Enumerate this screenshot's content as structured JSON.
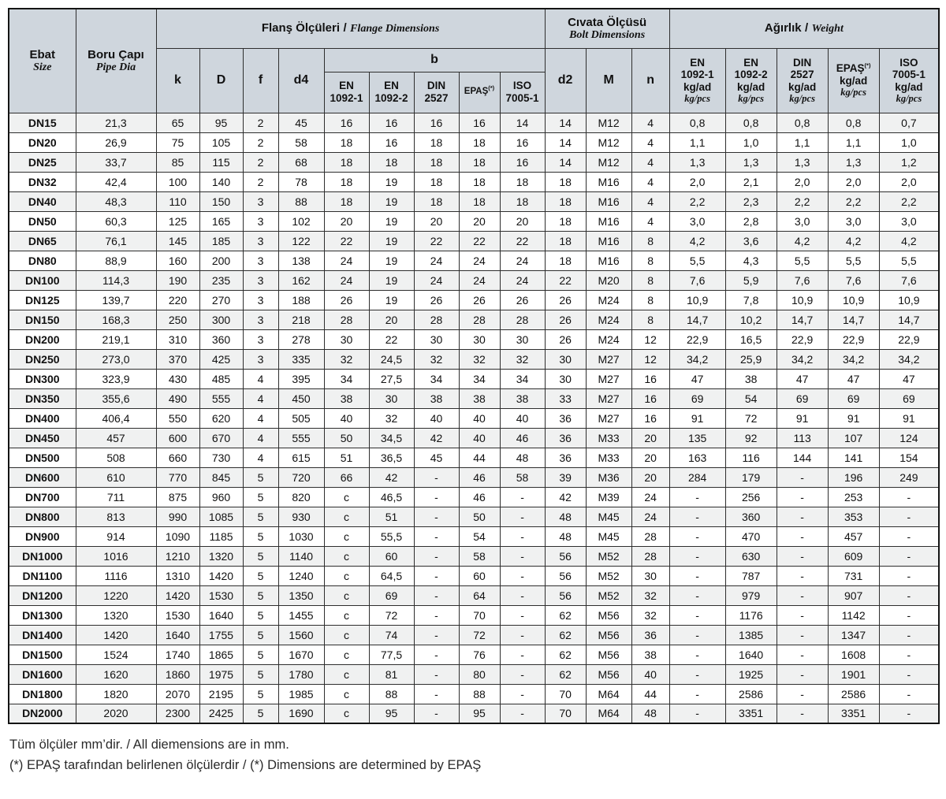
{
  "colors": {
    "header_bg": "#cfd6dd",
    "stripe": "#f0f1f1",
    "grid": "#2e2e2e"
  },
  "page": {
    "footnote1": "Tüm ölçüler mm’dir. / All diemensions are in mm.",
    "footnote2": "(*) EPAŞ tarafından belirlenen ölçülerdir / (*) Dimensions are determined by EPAŞ"
  },
  "table": {
    "header": {
      "sep": "/",
      "size": {
        "tr": "Ebat",
        "en": "Size"
      },
      "pipe": {
        "tr": "Boru Çapı",
        "en": "Pipe Dia"
      },
      "flange_group": {
        "tr": "Flanş Ölçüleri",
        "en": "Flange Dimensions"
      },
      "bolt_group": {
        "tr": "Cıvata Ölçüsü",
        "en": "Bolt Dimensions"
      },
      "weight_group": {
        "tr": "Ağırlık",
        "en": "Weight"
      },
      "k": "k",
      "D": "D",
      "f": "f",
      "d4": "d4",
      "b": "b",
      "d2": "d2",
      "M": "M",
      "n": "n",
      "unit_ad": "kg/ad",
      "unit_pcs": "kg/pcs",
      "b_sub": [
        {
          "l1": "EN",
          "l2": "1092-1"
        },
        {
          "l1": "EN",
          "l2": "1092-2"
        },
        {
          "l1": "DIN",
          "l2": "2527"
        },
        {
          "l1": "EPAŞ",
          "sup": "(*)"
        },
        {
          "l1": "ISO",
          "l2": "7005-1"
        }
      ],
      "weight_sub": [
        {
          "l1": "EN",
          "l2": "1092-1"
        },
        {
          "l1": "EN",
          "l2": "1092-2"
        },
        {
          "l1": "DIN",
          "l2": "2527"
        },
        {
          "l1": "EPAŞ",
          "sup": "(*)"
        },
        {
          "l1": "ISO",
          "l2": "7005-1"
        }
      ]
    },
    "rows": [
      [
        "DN15",
        "21,3",
        "65",
        "95",
        "2",
        "45",
        "16",
        "16",
        "16",
        "16",
        "14",
        "14",
        "M12",
        "4",
        "0,8",
        "0,8",
        "0,8",
        "0,8",
        "0,7"
      ],
      [
        "DN20",
        "26,9",
        "75",
        "105",
        "2",
        "58",
        "18",
        "16",
        "18",
        "18",
        "16",
        "14",
        "M12",
        "4",
        "1,1",
        "1,0",
        "1,1",
        "1,1",
        "1,0"
      ],
      [
        "DN25",
        "33,7",
        "85",
        "115",
        "2",
        "68",
        "18",
        "18",
        "18",
        "18",
        "16",
        "14",
        "M12",
        "4",
        "1,3",
        "1,3",
        "1,3",
        "1,3",
        "1,2"
      ],
      [
        "DN32",
        "42,4",
        "100",
        "140",
        "2",
        "78",
        "18",
        "19",
        "18",
        "18",
        "18",
        "18",
        "M16",
        "4",
        "2,0",
        "2,1",
        "2,0",
        "2,0",
        "2,0"
      ],
      [
        "DN40",
        "48,3",
        "110",
        "150",
        "3",
        "88",
        "18",
        "19",
        "18",
        "18",
        "18",
        "18",
        "M16",
        "4",
        "2,2",
        "2,3",
        "2,2",
        "2,2",
        "2,2"
      ],
      [
        "DN50",
        "60,3",
        "125",
        "165",
        "3",
        "102",
        "20",
        "19",
        "20",
        "20",
        "20",
        "18",
        "M16",
        "4",
        "3,0",
        "2,8",
        "3,0",
        "3,0",
        "3,0"
      ],
      [
        "DN65",
        "76,1",
        "145",
        "185",
        "3",
        "122",
        "22",
        "19",
        "22",
        "22",
        "22",
        "18",
        "M16",
        "8",
        "4,2",
        "3,6",
        "4,2",
        "4,2",
        "4,2"
      ],
      [
        "DN80",
        "88,9",
        "160",
        "200",
        "3",
        "138",
        "24",
        "19",
        "24",
        "24",
        "24",
        "18",
        "M16",
        "8",
        "5,5",
        "4,3",
        "5,5",
        "5,5",
        "5,5"
      ],
      [
        "DN100",
        "114,3",
        "190",
        "235",
        "3",
        "162",
        "24",
        "19",
        "24",
        "24",
        "24",
        "22",
        "M20",
        "8",
        "7,6",
        "5,9",
        "7,6",
        "7,6",
        "7,6"
      ],
      [
        "DN125",
        "139,7",
        "220",
        "270",
        "3",
        "188",
        "26",
        "19",
        "26",
        "26",
        "26",
        "26",
        "M24",
        "8",
        "10,9",
        "7,8",
        "10,9",
        "10,9",
        "10,9"
      ],
      [
        "DN150",
        "168,3",
        "250",
        "300",
        "3",
        "218",
        "28",
        "20",
        "28",
        "28",
        "28",
        "26",
        "M24",
        "8",
        "14,7",
        "10,2",
        "14,7",
        "14,7",
        "14,7"
      ],
      [
        "DN200",
        "219,1",
        "310",
        "360",
        "3",
        "278",
        "30",
        "22",
        "30",
        "30",
        "30",
        "26",
        "M24",
        "12",
        "22,9",
        "16,5",
        "22,9",
        "22,9",
        "22,9"
      ],
      [
        "DN250",
        "273,0",
        "370",
        "425",
        "3",
        "335",
        "32",
        "24,5",
        "32",
        "32",
        "32",
        "30",
        "M27",
        "12",
        "34,2",
        "25,9",
        "34,2",
        "34,2",
        "34,2"
      ],
      [
        "DN300",
        "323,9",
        "430",
        "485",
        "4",
        "395",
        "34",
        "27,5",
        "34",
        "34",
        "34",
        "30",
        "M27",
        "16",
        "47",
        "38",
        "47",
        "47",
        "47"
      ],
      [
        "DN350",
        "355,6",
        "490",
        "555",
        "4",
        "450",
        "38",
        "30",
        "38",
        "38",
        "38",
        "33",
        "M27",
        "16",
        "69",
        "54",
        "69",
        "69",
        "69"
      ],
      [
        "DN400",
        "406,4",
        "550",
        "620",
        "4",
        "505",
        "40",
        "32",
        "40",
        "40",
        "40",
        "36",
        "M27",
        "16",
        "91",
        "72",
        "91",
        "91",
        "91"
      ],
      [
        "DN450",
        "457",
        "600",
        "670",
        "4",
        "555",
        "50",
        "34,5",
        "42",
        "40",
        "46",
        "36",
        "M33",
        "20",
        "135",
        "92",
        "113",
        "107",
        "124"
      ],
      [
        "DN500",
        "508",
        "660",
        "730",
        "4",
        "615",
        "51",
        "36,5",
        "45",
        "44",
        "48",
        "36",
        "M33",
        "20",
        "163",
        "116",
        "144",
        "141",
        "154"
      ],
      [
        "DN600",
        "610",
        "770",
        "845",
        "5",
        "720",
        "66",
        "42",
        "-",
        "46",
        "58",
        "39",
        "M36",
        "20",
        "284",
        "179",
        "-",
        "196",
        "249"
      ],
      [
        "DN700",
        "711",
        "875",
        "960",
        "5",
        "820",
        "c",
        "46,5",
        "-",
        "46",
        "-",
        "42",
        "M39",
        "24",
        "-",
        "256",
        "-",
        "253",
        "-"
      ],
      [
        "DN800",
        "813",
        "990",
        "1085",
        "5",
        "930",
        "c",
        "51",
        "-",
        "50",
        "-",
        "48",
        "M45",
        "24",
        "-",
        "360",
        "-",
        "353",
        "-"
      ],
      [
        "DN900",
        "914",
        "1090",
        "1185",
        "5",
        "1030",
        "c",
        "55,5",
        "-",
        "54",
        "-",
        "48",
        "M45",
        "28",
        "-",
        "470",
        "-",
        "457",
        "-"
      ],
      [
        "DN1000",
        "1016",
        "1210",
        "1320",
        "5",
        "1140",
        "c",
        "60",
        "-",
        "58",
        "-",
        "56",
        "M52",
        "28",
        "-",
        "630",
        "-",
        "609",
        "-"
      ],
      [
        "DN1100",
        "1116",
        "1310",
        "1420",
        "5",
        "1240",
        "c",
        "64,5",
        "-",
        "60",
        "-",
        "56",
        "M52",
        "30",
        "-",
        "787",
        "-",
        "731",
        "-"
      ],
      [
        "DN1200",
        "1220",
        "1420",
        "1530",
        "5",
        "1350",
        "c",
        "69",
        "-",
        "64",
        "-",
        "56",
        "M52",
        "32",
        "-",
        "979",
        "-",
        "907",
        "-"
      ],
      [
        "DN1300",
        "1320",
        "1530",
        "1640",
        "5",
        "1455",
        "c",
        "72",
        "-",
        "70",
        "-",
        "62",
        "M56",
        "32",
        "-",
        "1176",
        "-",
        "1142",
        "-"
      ],
      [
        "DN1400",
        "1420",
        "1640",
        "1755",
        "5",
        "1560",
        "c",
        "74",
        "-",
        "72",
        "-",
        "62",
        "M56",
        "36",
        "-",
        "1385",
        "-",
        "1347",
        "-"
      ],
      [
        "DN1500",
        "1524",
        "1740",
        "1865",
        "5",
        "1670",
        "c",
        "77,5",
        "-",
        "76",
        "-",
        "62",
        "M56",
        "38",
        "-",
        "1640",
        "-",
        "1608",
        "-"
      ],
      [
        "DN1600",
        "1620",
        "1860",
        "1975",
        "5",
        "1780",
        "c",
        "81",
        "-",
        "80",
        "-",
        "62",
        "M56",
        "40",
        "-",
        "1925",
        "-",
        "1901",
        "-"
      ],
      [
        "DN1800",
        "1820",
        "2070",
        "2195",
        "5",
        "1985",
        "c",
        "88",
        "-",
        "88",
        "-",
        "70",
        "M64",
        "44",
        "-",
        "2586",
        "-",
        "2586",
        "-"
      ],
      [
        "DN2000",
        "2020",
        "2300",
        "2425",
        "5",
        "1690",
        "c",
        "95",
        "-",
        "95",
        "-",
        "70",
        "M64",
        "48",
        "-",
        "3351",
        "-",
        "3351",
        "-"
      ]
    ]
  }
}
